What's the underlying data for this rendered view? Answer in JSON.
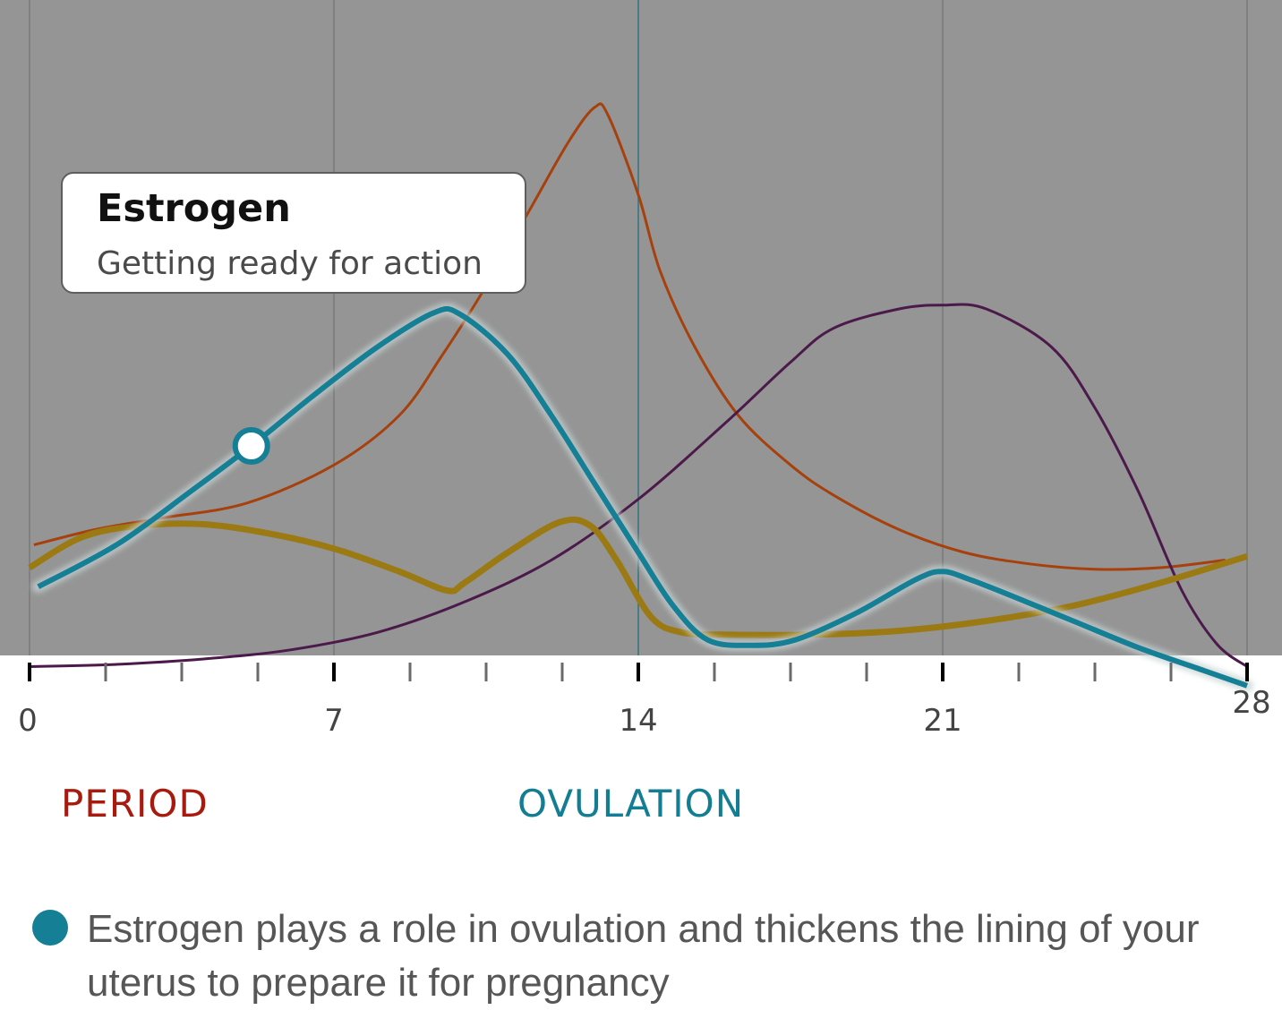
{
  "tooltip": {
    "title": "Estrogen",
    "subtitle": "Getting ready for action"
  },
  "phases": {
    "period_label": "PERIOD",
    "ovulation_label": "OVULATION"
  },
  "legend": {
    "text": "Estrogen plays a role in ovulation and thickens the lining of your uterus to prepare it for pregnancy"
  },
  "colors": {
    "plot_background": "#959595",
    "estrogen": "#157f95",
    "lh": "#a6410d",
    "progesterone": "#4b1a4a",
    "fsh": "#9b7a13",
    "period": "#a91a0e",
    "ovulation": "#127d93"
  },
  "chart_data": {
    "type": "line",
    "x_tick_labels": [
      "0",
      "7",
      "14",
      "21",
      "28"
    ],
    "xlim": [
      0,
      28
    ],
    "ylim": [
      0,
      100
    ],
    "minor_tick_step": 1.75,
    "highlight_line_x": 14,
    "grid": true,
    "series": [
      {
        "key": "lh",
        "color": "#a6410d",
        "width": 3,
        "halo": false,
        "points": [
          [
            0.1,
            27
          ],
          [
            1.5,
            29
          ],
          [
            3,
            30.5
          ],
          [
            5,
            32.5
          ],
          [
            7,
            37.5
          ],
          [
            8.5,
            44
          ],
          [
            9.5,
            52
          ],
          [
            10.5,
            61
          ],
          [
            11.5,
            71
          ],
          [
            12.4,
            80
          ],
          [
            13,
            84.5
          ],
          [
            13.3,
            83.5
          ],
          [
            14,
            73
          ],
          [
            14.5,
            63
          ],
          [
            15.3,
            53
          ],
          [
            16.3,
            44
          ],
          [
            17.5,
            37.5
          ],
          [
            18.5,
            33.5
          ],
          [
            20,
            29
          ],
          [
            21.5,
            26
          ],
          [
            23,
            24.5
          ],
          [
            24.5,
            23.8
          ],
          [
            26,
            24
          ],
          [
            27.5,
            25
          ]
        ]
      },
      {
        "key": "progesterone",
        "color": "#4b1a4a",
        "width": 3,
        "halo": false,
        "points": [
          [
            0,
            11
          ],
          [
            2,
            11.3
          ],
          [
            4,
            12
          ],
          [
            6,
            13.2
          ],
          [
            8,
            15.5
          ],
          [
            10,
            19.5
          ],
          [
            12,
            25
          ],
          [
            14,
            33
          ],
          [
            16,
            43
          ],
          [
            17.5,
            51
          ],
          [
            18.5,
            55.5
          ],
          [
            20,
            58
          ],
          [
            21,
            58.5
          ],
          [
            22,
            58
          ],
          [
            23.5,
            53
          ],
          [
            24.5,
            45
          ],
          [
            25.5,
            34
          ],
          [
            26.5,
            21
          ],
          [
            27.3,
            14
          ],
          [
            28,
            11
          ]
        ]
      },
      {
        "key": "fsh",
        "color": "#9b7a13",
        "width": 7,
        "halo": false,
        "points": [
          [
            0,
            24
          ],
          [
            1.2,
            28
          ],
          [
            2.5,
            29.5
          ],
          [
            4,
            29.7
          ],
          [
            5.5,
            28.5
          ],
          [
            7,
            26.5
          ],
          [
            8.5,
            23.5
          ],
          [
            9.6,
            21
          ],
          [
            10,
            22
          ],
          [
            11,
            26
          ],
          [
            12.2,
            30
          ],
          [
            12.9,
            29.5
          ],
          [
            13.5,
            25
          ],
          [
            14.3,
            17.5
          ],
          [
            15,
            15.5
          ],
          [
            16,
            15.2
          ],
          [
            18,
            15.2
          ],
          [
            20,
            15.7
          ],
          [
            22,
            17
          ],
          [
            24,
            19
          ],
          [
            26,
            22
          ],
          [
            28,
            25.5
          ]
        ]
      },
      {
        "key": "estrogen",
        "color": "#157f95",
        "width": 6,
        "halo": true,
        "points": [
          [
            0.2,
            21.5
          ],
          [
            2,
            27
          ],
          [
            3.7,
            34
          ],
          [
            5.1,
            40
          ],
          [
            6.5,
            46.5
          ],
          [
            8,
            53
          ],
          [
            9.3,
            57.5
          ],
          [
            9.9,
            57.3
          ],
          [
            11,
            52
          ],
          [
            12,
            44
          ],
          [
            13,
            35
          ],
          [
            14,
            26
          ],
          [
            14.8,
            19
          ],
          [
            15.6,
            14.5
          ],
          [
            16.6,
            13.8
          ],
          [
            17.6,
            14.5
          ],
          [
            19,
            18
          ],
          [
            20.4,
            22.5
          ],
          [
            21,
            23.5
          ],
          [
            21.6,
            22.5
          ],
          [
            22.5,
            20.5
          ],
          [
            24,
            17
          ],
          [
            25.5,
            13.5
          ],
          [
            27,
            10.5
          ],
          [
            28,
            8.5
          ]
        ]
      }
    ],
    "highlight_point": {
      "series": "estrogen",
      "x": 5.1,
      "y": 40
    }
  }
}
